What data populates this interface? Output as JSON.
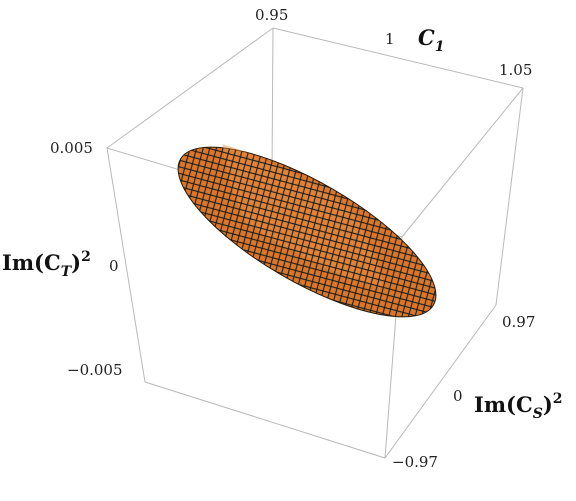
{
  "chart_data": {
    "type": "surface3d",
    "axes": {
      "c1": {
        "label_main": "C",
        "label_sub": "1",
        "range": [
          0.95,
          1.05
        ],
        "ticks": [
          "0.95",
          "1",
          "1.05"
        ]
      },
      "imcs2": {
        "label_main": "Im(C",
        "label_sub": "S",
        "label_close": ")",
        "label_power": "2",
        "range": [
          -0.97,
          0.97
        ],
        "ticks": [
          "0.97",
          "0",
          "−0.97"
        ]
      },
      "imct2": {
        "label_main": "Im(C",
        "label_sub": "T",
        "label_close": ")",
        "label_power": "2",
        "range": [
          -0.005,
          0.005
        ],
        "ticks": [
          "0.005",
          "0",
          "−0.005"
        ]
      }
    },
    "surface": {
      "shape": "flat ellipsoid",
      "center": {
        "c1": 1.0,
        "imcs2": 0.0,
        "imct2": 0.0
      },
      "color": "#d9782a",
      "mesh_color": "#1a1a1a"
    },
    "box": true,
    "grid": false
  }
}
